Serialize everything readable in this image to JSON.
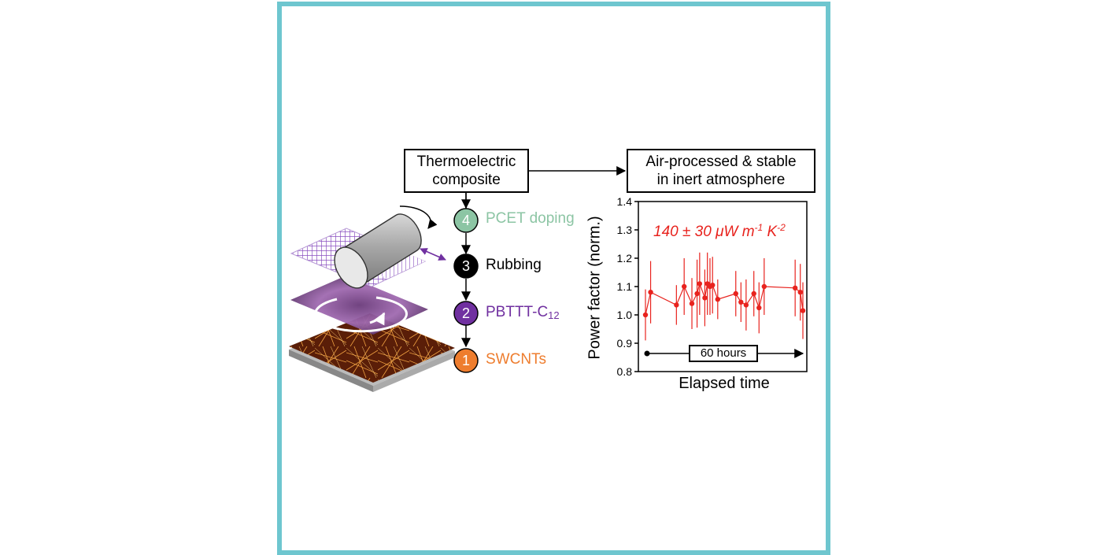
{
  "flow": {
    "composite_line1": "Thermoelectric",
    "composite_line2": "composite",
    "air_line1": "Air-processed & stable",
    "air_line2": "in inert atmosphere"
  },
  "steps": [
    {
      "num": "1",
      "label": "SWCNTs",
      "color": "#ee7d2e"
    },
    {
      "num": "2",
      "label": "PBTTT-C",
      "sub": "12",
      "color": "#7030a0"
    },
    {
      "num": "3",
      "label": "Rubbing",
      "color": "#000000"
    },
    {
      "num": "4",
      "label": "PCET doping",
      "color": "#8cc5a4"
    }
  ],
  "chart_data": {
    "type": "line",
    "title": "",
    "annotation_main": "140 ± 30 μW m",
    "annotation_exp1": "-1",
    "annotation_mid": " K",
    "annotation_exp2": "-2",
    "xlabel": "Elapsed time",
    "ylabel": "Power factor (norm.)",
    "ylim": [
      0.8,
      1.4
    ],
    "yticks": [
      "0.8",
      "0.9",
      "1.0",
      "1.1",
      "1.2",
      "1.3",
      "1.4"
    ],
    "xlim": [
      0,
      60
    ],
    "span_label": "60 hours",
    "series_color": "#e8231e",
    "series": [
      {
        "name": "",
        "x": [
          0,
          2,
          12,
          15,
          18,
          20,
          21,
          23,
          24,
          25,
          26,
          28,
          35,
          37,
          39,
          42,
          44,
          46,
          58,
          60,
          61
        ],
        "y": [
          1.0,
          1.08,
          1.035,
          1.1,
          1.04,
          1.075,
          1.11,
          1.06,
          1.11,
          1.1,
          1.105,
          1.055,
          1.075,
          1.045,
          1.035,
          1.075,
          1.025,
          1.1,
          1.095,
          1.08,
          1.015
        ],
        "err": [
          0.09,
          0.11,
          0.07,
          0.1,
          0.09,
          0.12,
          0.11,
          0.1,
          0.11,
          0.1,
          0.1,
          0.07,
          0.08,
          0.07,
          0.09,
          0.08,
          0.09,
          0.1,
          0.1,
          0.1,
          0.1
        ]
      }
    ]
  }
}
